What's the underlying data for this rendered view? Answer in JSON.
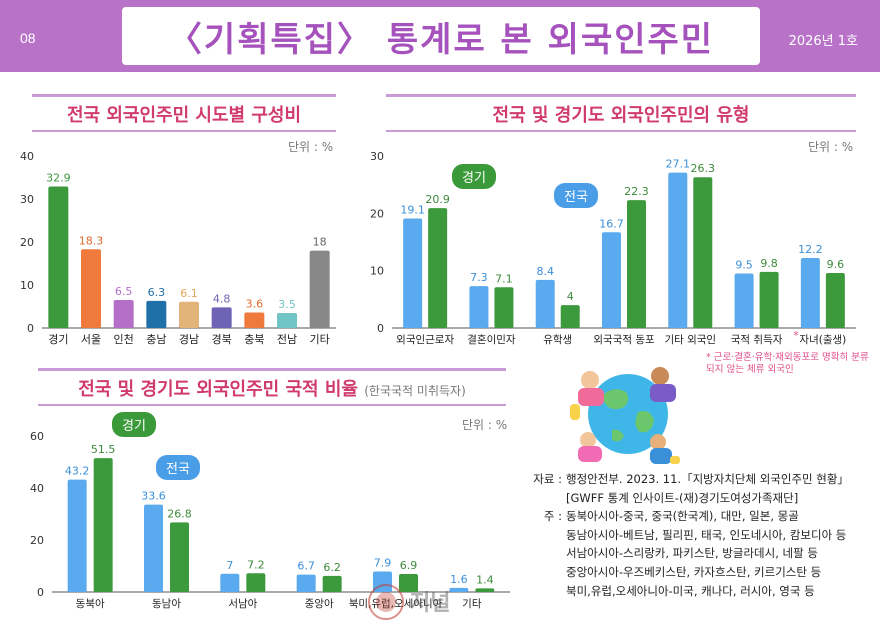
{
  "header": {
    "page_number": "08",
    "title": "〈기획특집〉 통계로 본 외국인주민",
    "issue": "2026년 1호"
  },
  "chart_data": [
    {
      "type": "bar",
      "title": "전국 외국인주민 시도별 구성비",
      "unit_label": "단위 : %",
      "categories": [
        "경기",
        "서울",
        "인천",
        "충남",
        "경남",
        "경북",
        "충북",
        "전남",
        "기타"
      ],
      "values": [
        32.9,
        18.3,
        6.5,
        6.3,
        6.1,
        4.8,
        3.6,
        3.5,
        18
      ],
      "value_labels": [
        "32.9",
        "18.3",
        "6.5",
        "6.3",
        "6.1",
        "4.8",
        "3.6",
        "3.5",
        "18"
      ],
      "colors": [
        "#3c9a3c",
        "#ef7a3b",
        "#b46fc8",
        "#1f6fa8",
        "#e3b47a",
        "#6e63b5",
        "#ef7a3b",
        "#6fc5c4",
        "#888888"
      ],
      "label_colors": [
        "#3c9a3c",
        "#e06a2b",
        "#b46fc8",
        "#1f6fa8",
        "#e3a45a",
        "#6e63b5",
        "#e06a2b",
        "#6fc5c4",
        "#666666"
      ],
      "yticks": [
        "0",
        "10",
        "20",
        "30",
        "40"
      ],
      "ylim": [
        0,
        40
      ]
    },
    {
      "type": "bar",
      "title": "전국 및 경기도 외국인주민의 유형",
      "unit_label": "단위 : %",
      "categories": [
        "외국인근로자",
        "결혼이민자",
        "유학생",
        "외국국적 동포",
        "기타 외국인",
        "국적 취득자",
        "자녀(출생)"
      ],
      "category_marks": [
        "",
        "",
        "",
        "",
        "",
        "*",
        ""
      ],
      "series": [
        {
          "name": "전국",
          "values": [
            19.1,
            7.3,
            8.4,
            16.7,
            27.1,
            9.5,
            12.2
          ],
          "value_labels": [
            "19.1",
            "7.3",
            "8.4",
            "16.7",
            "27.1",
            "9.5",
            "12.2"
          ],
          "color": "#5aaaf0"
        },
        {
          "name": "경기",
          "values": [
            20.9,
            7.1,
            4,
            22.3,
            26.3,
            9.8,
            9.6
          ],
          "value_labels": [
            "20.9",
            "7.1",
            "4",
            "22.3",
            "26.3",
            "9.8",
            "9.6"
          ],
          "color": "#3c9a3c"
        }
      ],
      "yticks": [
        "0",
        "10",
        "20",
        "30"
      ],
      "ylim": [
        0,
        30
      ],
      "footnote": "* 근로·결혼·유학·재외동포로 명확히 분류되지 않는 체류 외국인"
    },
    {
      "type": "bar",
      "title": "전국 및 경기도 외국인주민 국적 비율",
      "subtitle": "(한국국적 미취득자)",
      "unit_label": "단위 : %",
      "categories": [
        "동북아",
        "동남아",
        "서남아",
        "중앙아",
        "북미,유럽,오세아니아",
        "기타"
      ],
      "series": [
        {
          "name": "전국",
          "values": [
            43.2,
            33.6,
            7,
            6.7,
            7.9,
            1.6
          ],
          "value_labels": [
            "43.2",
            "33.6",
            "7",
            "6.7",
            "7.9",
            "1.6"
          ],
          "color": "#5aaaf0"
        },
        {
          "name": "경기",
          "values": [
            51.5,
            26.8,
            7.2,
            6.2,
            6.9,
            1.4
          ],
          "value_labels": [
            "51.5",
            "26.8",
            "7.2",
            "6.2",
            "6.9",
            "1.4"
          ],
          "color": "#3c9a3c"
        }
      ],
      "yticks": [
        "0",
        "20",
        "40",
        "60"
      ],
      "ylim": [
        0,
        60
      ]
    }
  ],
  "notes": {
    "source_label": "자료 :",
    "source_lines": [
      "행정안전부. 2023. 11.「지방자치단체 외국인주민 현황」",
      "[GWFF 통계 인사이트-(재)경기도여성가족재단]"
    ],
    "note_label": "주 :",
    "note_lines": [
      "동북아시아-중국, 중국(한국계), 대만, 일본, 몽골",
      "동남아시아-베트남, 필리핀, 태국, 인도네시아, 캄보디아 등",
      "서남아시아-스리랑카, 파키스탄, 방글라데시, 네팔 등",
      "중앙아시아-우즈베키스탄, 카자흐스탄, 키르기스탄 등",
      "북미,유럽,오세아니아-미국, 캐나다, 러시아, 영국 등"
    ]
  },
  "watermark_text": "경기여성기자단 저널"
}
